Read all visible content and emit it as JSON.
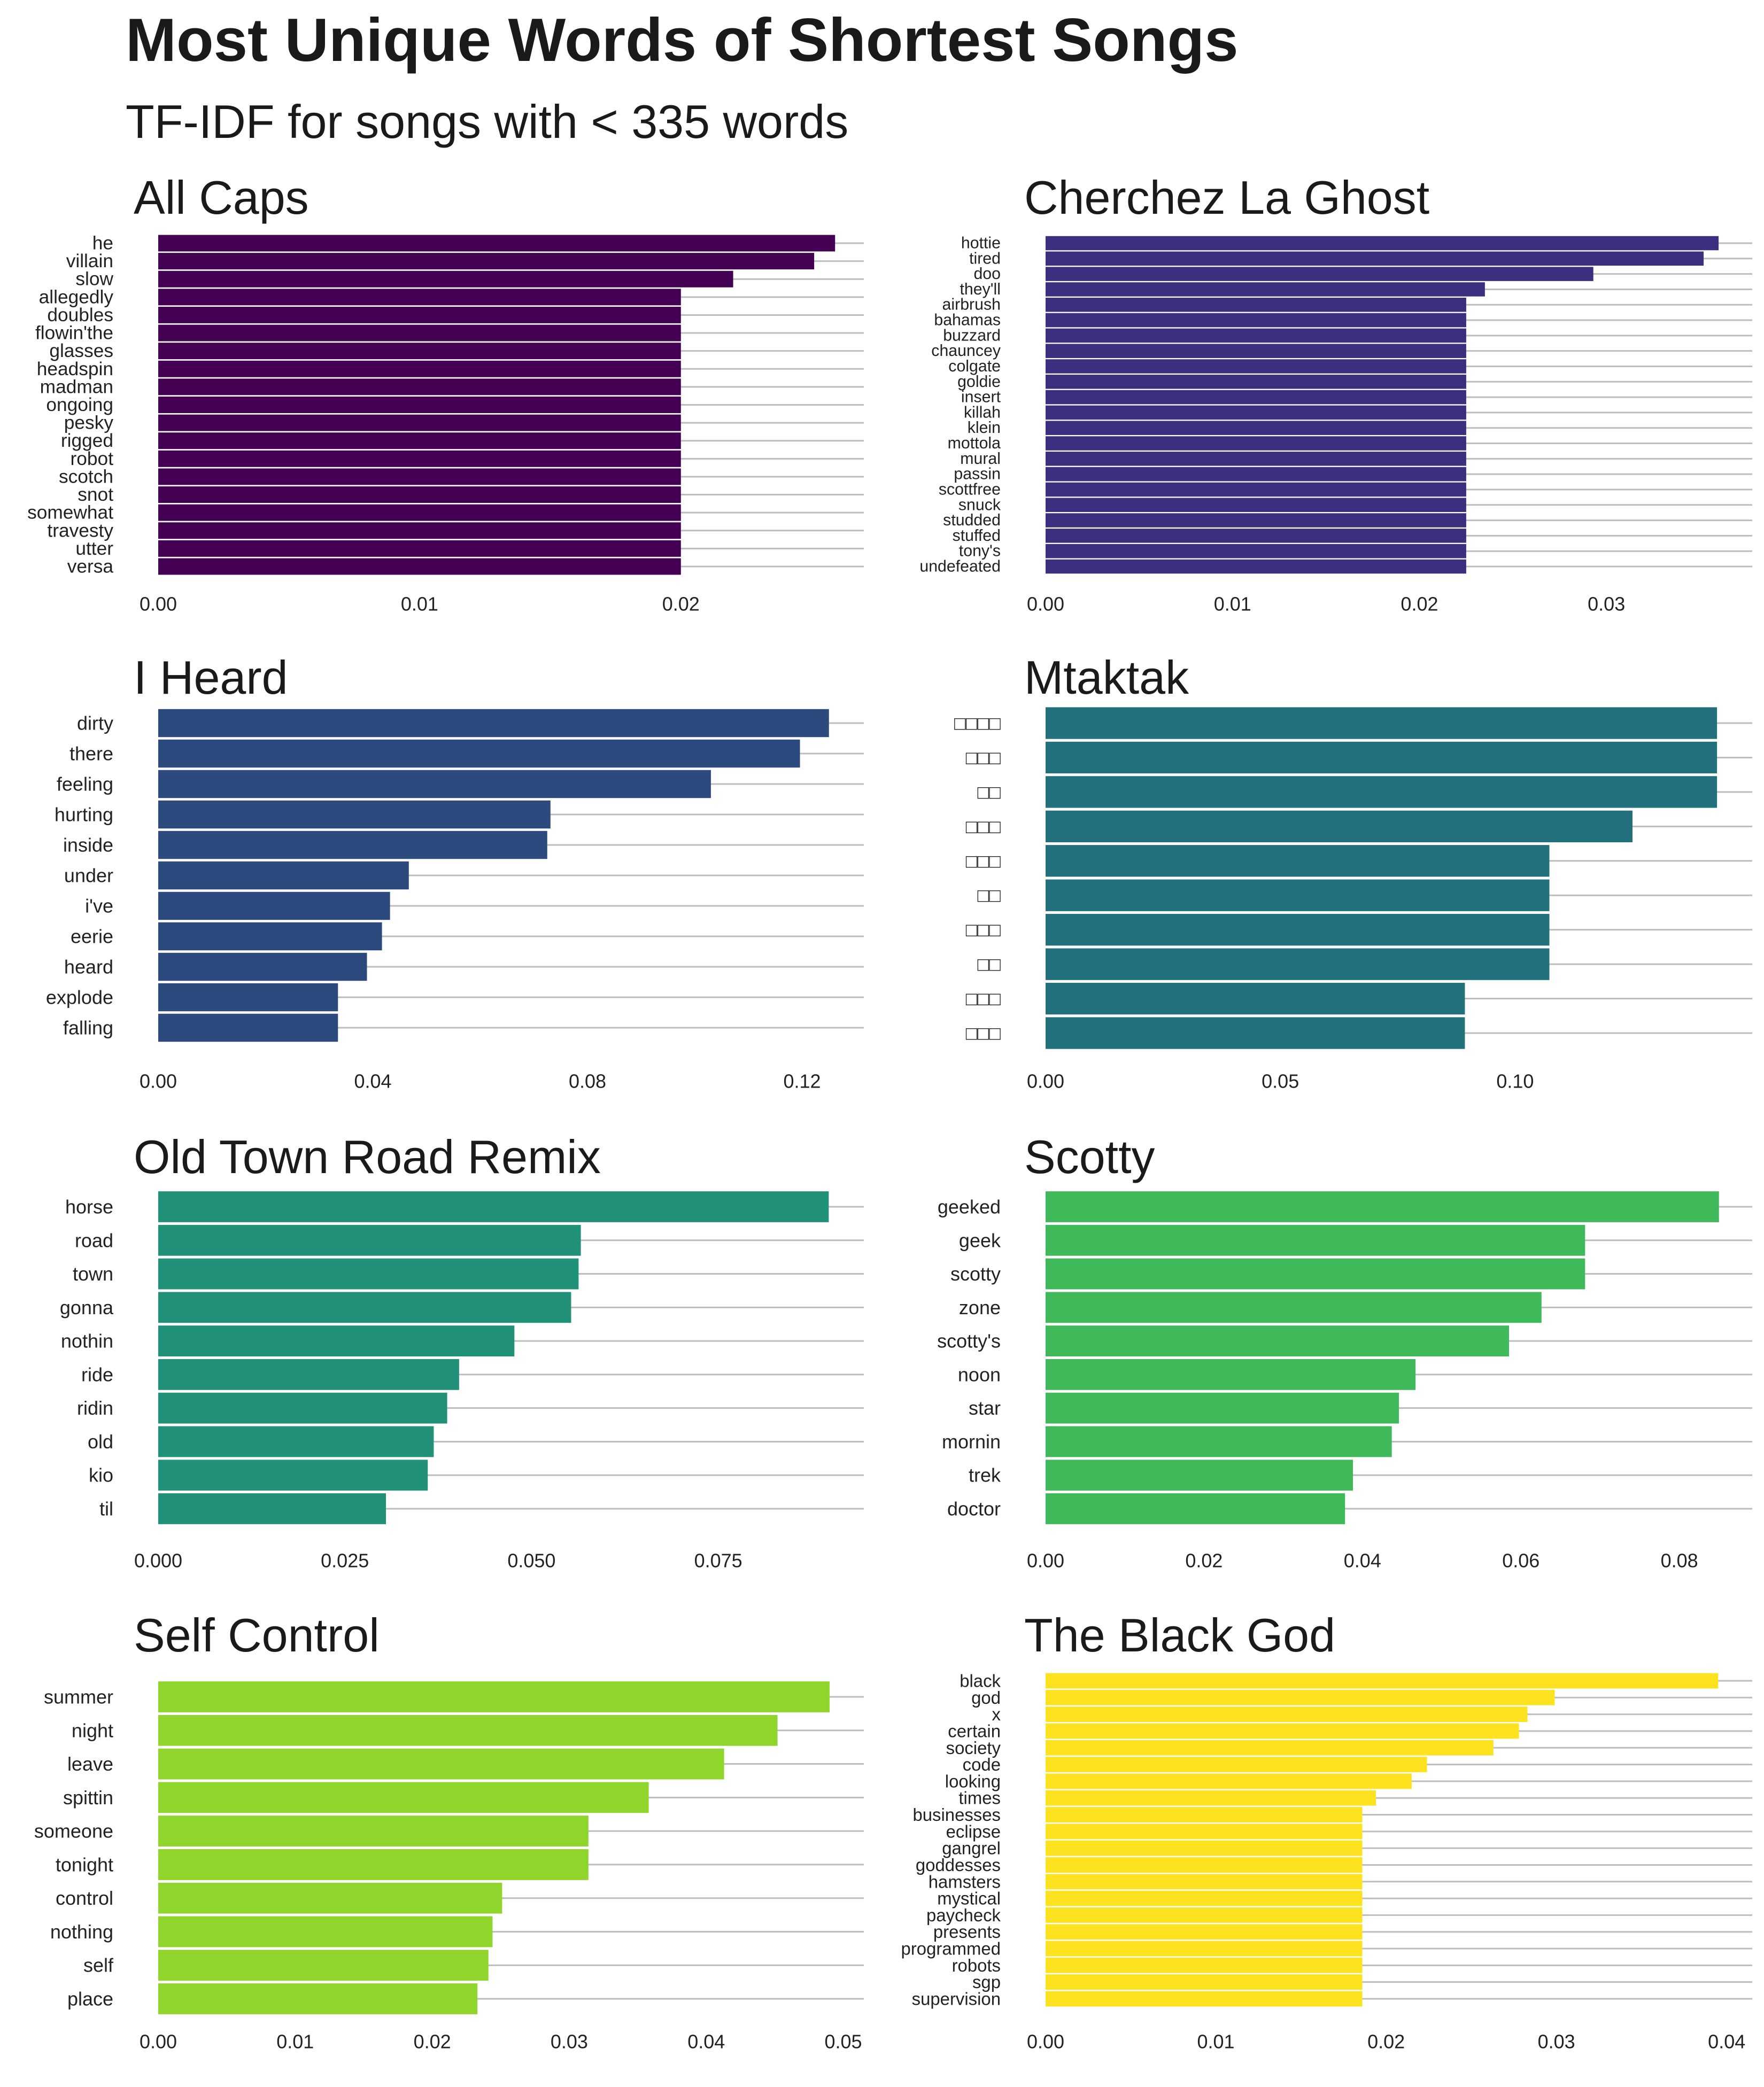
{
  "title": "Most Unique Words of Shortest Songs",
  "subtitle": "TF-IDF for songs with < 335 words",
  "chart_data": [
    {
      "type": "bar",
      "orientation": "horizontal",
      "title": "All Caps",
      "color": "#440154",
      "xlim": [
        0,
        0.027
      ],
      "xticks": [
        0,
        0.01,
        0.02
      ],
      "xtick_labels": [
        "0.00",
        "0.01",
        "0.02"
      ],
      "categories": [
        "he",
        "villain",
        "slow",
        "allegedly",
        "doubles",
        "flowin'the",
        "glasses",
        "headspin",
        "madman",
        "ongoing",
        "pesky",
        "rigged",
        "robot",
        "scotch",
        "snot",
        "somewhat",
        "travesty",
        "utter",
        "versa"
      ],
      "values": [
        0.0259,
        0.0251,
        0.022,
        0.02,
        0.02,
        0.02,
        0.02,
        0.02,
        0.02,
        0.02,
        0.02,
        0.02,
        0.02,
        0.02,
        0.02,
        0.02,
        0.02,
        0.02,
        0.02
      ]
    },
    {
      "type": "bar",
      "orientation": "horizontal",
      "title": "Cherchez La Ghost",
      "color": "#3B2F80",
      "xlim": [
        0,
        0.0378
      ],
      "xticks": [
        0,
        0.01,
        0.02,
        0.03
      ],
      "xtick_labels": [
        "0.00",
        "0.01",
        "0.02",
        "0.03"
      ],
      "categories": [
        "hottie",
        "tired",
        "doo",
        "they'll",
        "airbrush",
        "bahamas",
        "buzzard",
        "chauncey",
        "colgate",
        "goldie",
        "insert",
        "killah",
        "klein",
        "mottola",
        "mural",
        "passin",
        "scottfree",
        "snuck",
        "studded",
        "stuffed",
        "tony's",
        "undefeated"
      ],
      "values": [
        0.036,
        0.0352,
        0.0293,
        0.0235,
        0.0225,
        0.0225,
        0.0225,
        0.0225,
        0.0225,
        0.0225,
        0.0225,
        0.0225,
        0.0225,
        0.0225,
        0.0225,
        0.0225,
        0.0225,
        0.0225,
        0.0225,
        0.0225,
        0.0225,
        0.0225
      ]
    },
    {
      "type": "bar",
      "orientation": "horizontal",
      "title": "I Heard",
      "color": "#2C4A7E",
      "xlim": [
        0,
        0.1315
      ],
      "xticks": [
        0,
        0.04,
        0.08,
        0.12
      ],
      "xtick_labels": [
        "0.00",
        "0.04",
        "0.08",
        "0.12"
      ],
      "categories": [
        "dirty",
        "there",
        "feeling",
        "hurting",
        "inside",
        "under",
        "i've",
        "eerie",
        "heard",
        "explode",
        "falling"
      ],
      "values": [
        0.125,
        0.1196,
        0.103,
        0.0731,
        0.0725,
        0.0467,
        0.0432,
        0.0417,
        0.0389,
        0.0335,
        0.0335
      ]
    },
    {
      "type": "bar",
      "orientation": "horizontal",
      "title": "Mtaktak",
      "color": "#21707C",
      "xlim": [
        0,
        0.1505
      ],
      "xticks": [
        0,
        0.05,
        0.1
      ],
      "xtick_labels": [
        "0.00",
        "0.05",
        "0.10"
      ],
      "categories": [
        "□□□□",
        "□□□",
        "□□",
        "□□□",
        "□□□",
        "□□",
        "□□□",
        "□□",
        "□□□",
        "□□□"
      ],
      "values": [
        0.143,
        0.143,
        0.143,
        0.125,
        0.1073,
        0.1073,
        0.1073,
        0.1073,
        0.0893,
        0.0893
      ]
    },
    {
      "type": "bar",
      "orientation": "horizontal",
      "title": "Old Town Road Remix",
      "color": "#21917A",
      "xlim": [
        0,
        0.0945
      ],
      "xticks": [
        0,
        0.025,
        0.05,
        0.075
      ],
      "xtick_labels": [
        "0.000",
        "0.025",
        "0.050",
        "0.075"
      ],
      "categories": [
        "horse",
        "road",
        "town",
        "gonna",
        "nothin",
        "ride",
        "ridin",
        "old",
        "kio",
        "til"
      ],
      "values": [
        0.0898,
        0.0566,
        0.0563,
        0.0553,
        0.0477,
        0.0403,
        0.0387,
        0.0369,
        0.0361,
        0.0305
      ]
    },
    {
      "type": "bar",
      "orientation": "horizontal",
      "title": "Scotty",
      "color": "#3FB95A",
      "xlim": [
        0,
        0.0892
      ],
      "xticks": [
        0,
        0.02,
        0.04,
        0.06,
        0.08
      ],
      "xtick_labels": [
        "0.00",
        "0.02",
        "0.04",
        "0.06",
        "0.08"
      ],
      "categories": [
        "geeked",
        "geek",
        "scotty",
        "zone",
        "scotty's",
        "noon",
        "star",
        "mornin",
        "trek",
        "doctor"
      ],
      "values": [
        0.085,
        0.0681,
        0.0681,
        0.0626,
        0.0585,
        0.0467,
        0.0446,
        0.0437,
        0.0388,
        0.0378
      ]
    },
    {
      "type": "bar",
      "orientation": "horizontal",
      "title": "Self Control",
      "color": "#8FD52C",
      "xlim": [
        0,
        0.0515
      ],
      "xticks": [
        0,
        0.01,
        0.02,
        0.03,
        0.04,
        0.05
      ],
      "xtick_labels": [
        "0.00",
        "0.01",
        "0.02",
        "0.03",
        "0.04",
        "0.05"
      ],
      "categories": [
        "summer",
        "night",
        "leave",
        "spittin",
        "someone",
        "tonight",
        "control",
        "nothing",
        "self",
        "place"
      ],
      "values": [
        0.049,
        0.0452,
        0.0413,
        0.0358,
        0.0314,
        0.0314,
        0.0251,
        0.0244,
        0.0241,
        0.0233
      ]
    },
    {
      "type": "bar",
      "orientation": "horizontal",
      "title": "The Black God",
      "color": "#FDE31F",
      "xlim": [
        0,
        0.0415
      ],
      "xticks": [
        0,
        0.01,
        0.02,
        0.03,
        0.04
      ],
      "xtick_labels": [
        "0.00",
        "0.01",
        "0.02",
        "0.03",
        "0.04"
      ],
      "categories": [
        "black",
        "god",
        "x",
        "certain",
        "society",
        "code",
        "looking",
        "times",
        "businesses",
        "eclipse",
        "gangrel",
        "goddesses",
        "hamsters",
        "mystical",
        "paycheck",
        "presents",
        "programmed",
        "robots",
        "sgp",
        "supervision"
      ],
      "values": [
        0.0395,
        0.0299,
        0.0283,
        0.0278,
        0.0263,
        0.0224,
        0.0215,
        0.0194,
        0.0186,
        0.0186,
        0.0186,
        0.0186,
        0.0186,
        0.0186,
        0.0186,
        0.0186,
        0.0186,
        0.0186,
        0.0186,
        0.0186
      ]
    }
  ]
}
